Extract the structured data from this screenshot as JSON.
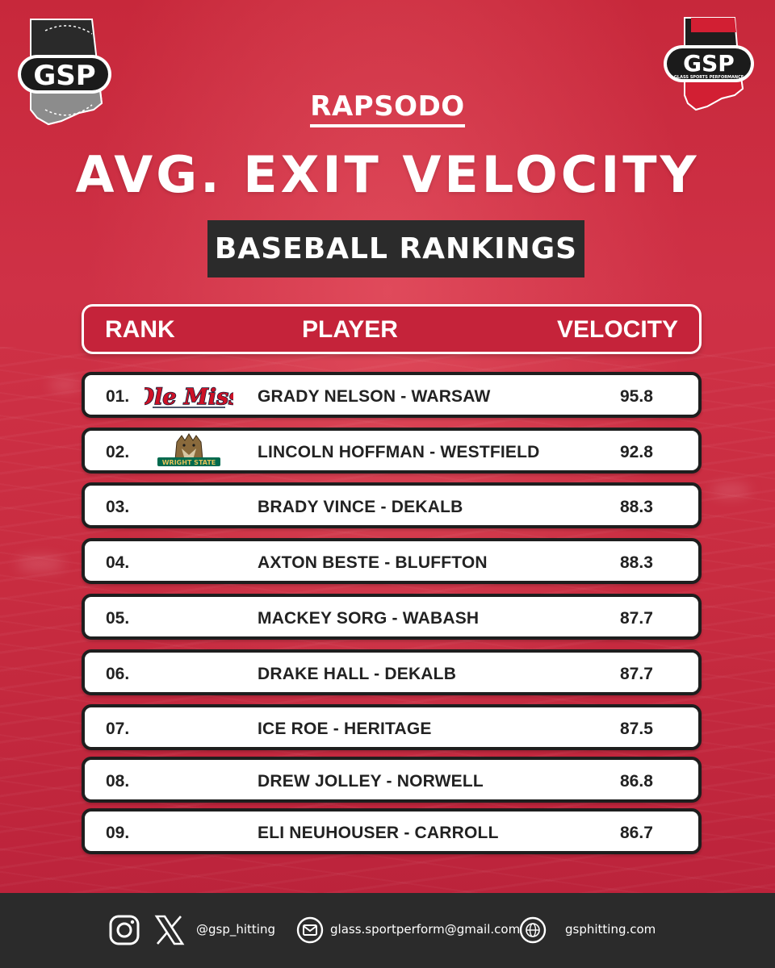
{
  "brand": {
    "left_logo_text": "GSP",
    "right_logo_text": "GSP",
    "right_logo_tagline": "GLASS SPORTS PERFORMANCE"
  },
  "header": {
    "kicker": "RAPSODO",
    "title": "AVG. EXIT VELOCITY",
    "subtitle": "BASEBALL RANKINGS"
  },
  "table": {
    "columns": {
      "rank": "RANK",
      "player": "PLAYER",
      "velocity": "VELOCITY"
    },
    "rows": [
      {
        "rank": "01.",
        "player": "GRADY NELSON - WARSAW",
        "velocity": "95.8",
        "logo": "ole-miss-logo",
        "logo_text": "Ole Miss"
      },
      {
        "rank": "02.",
        "player": "LINCOLN HOFFMAN - WESTFIELD",
        "velocity": "92.8",
        "logo": "wright-state-logo",
        "logo_text": "WRIGHT STATE"
      },
      {
        "rank": "03.",
        "player": "BRADY VINCE - DEKALB",
        "velocity": "88.3"
      },
      {
        "rank": "04.",
        "player": "AXTON BESTE - BLUFFTON",
        "velocity": "88.3"
      },
      {
        "rank": "05.",
        "player": "MACKEY SORG - WABASH",
        "velocity": "87.7"
      },
      {
        "rank": "06.",
        "player": "DRAKE HALL - DEKALB",
        "velocity": "87.7"
      },
      {
        "rank": "07.",
        "player": "ICE ROE - HERITAGE",
        "velocity": "87.5"
      },
      {
        "rank": "08.",
        "player": "DREW JOLLEY - NORWELL",
        "velocity": "86.8"
      },
      {
        "rank": "09.",
        "player": "ELI NEUHOUSER - CARROLL",
        "velocity": "86.7"
      }
    ]
  },
  "footer": {
    "handle": "@gsp_hitting",
    "email": "glass.sportperform@gmail.com",
    "website": "gsphitting.com",
    "icons": [
      "instagram-icon",
      "x-icon",
      "email-icon",
      "globe-icon"
    ]
  },
  "colors": {
    "background_red": "#c82c40",
    "header_red": "#c5233a",
    "dark": "#2b2b2b",
    "ole_miss_red": "#ce1126",
    "ole_miss_navy": "#14213d",
    "wright_state_green": "#006a4e"
  }
}
